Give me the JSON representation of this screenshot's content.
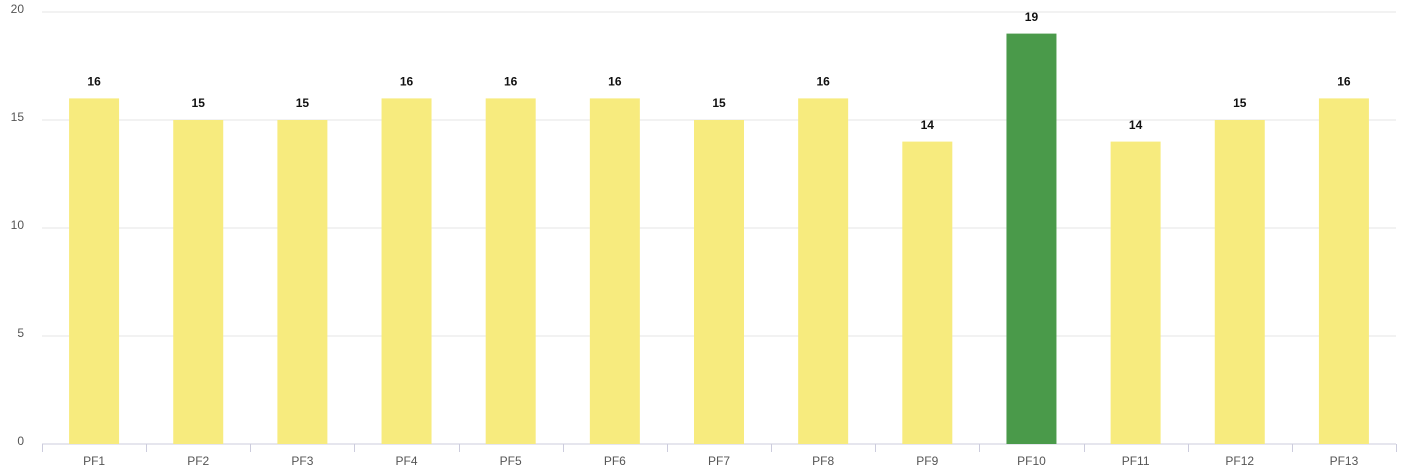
{
  "chart_data": {
    "type": "bar",
    "categories": [
      "PF1",
      "PF2",
      "PF3",
      "PF4",
      "PF5",
      "PF6",
      "PF7",
      "PF8",
      "PF9",
      "PF10",
      "PF11",
      "PF12",
      "PF13"
    ],
    "values": [
      16,
      15,
      15,
      16,
      16,
      16,
      15,
      16,
      14,
      19,
      14,
      15,
      16
    ],
    "colors": [
      "#f7eb7e",
      "#f7eb7e",
      "#f7eb7e",
      "#f7eb7e",
      "#f7eb7e",
      "#f7eb7e",
      "#f7eb7e",
      "#f7eb7e",
      "#f7eb7e",
      "#4a9a4a",
      "#f7eb7e",
      "#f7eb7e",
      "#f7eb7e"
    ],
    "ylim": [
      0,
      20
    ],
    "yticks": [
      0,
      5,
      10,
      15,
      20
    ],
    "grid": true
  }
}
